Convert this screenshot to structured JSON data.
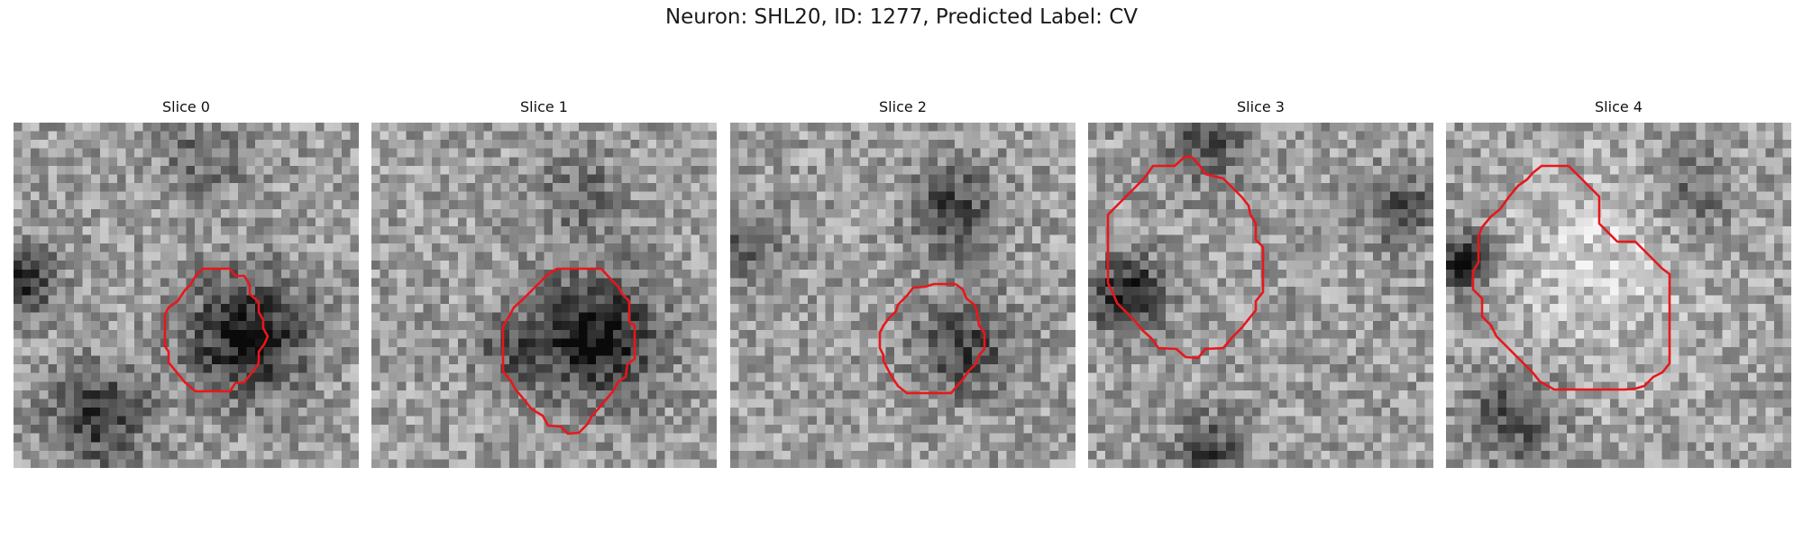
{
  "figure": {
    "title": "Neuron: SHL20, ID: 1277, Predicted Label: CV"
  },
  "colors": {
    "contour": "#e8171b",
    "colormap": "gray"
  },
  "panels": [
    {
      "title": "Slice 0"
    },
    {
      "title": "Slice 1"
    },
    {
      "title": "Slice 2"
    },
    {
      "title": "Slice 3"
    },
    {
      "title": "Slice 4"
    }
  ]
}
